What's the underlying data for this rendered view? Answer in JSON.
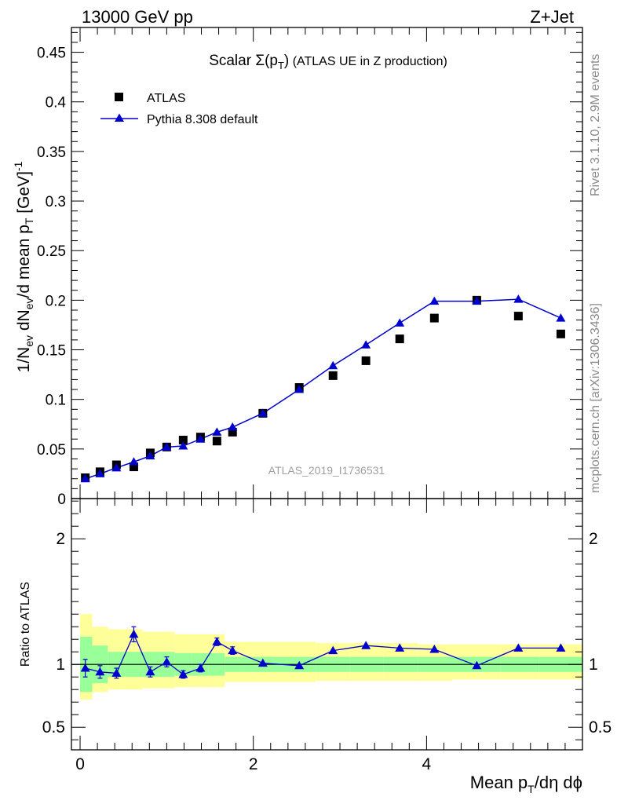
{
  "header": {
    "left": "13000 GeV pp",
    "right": "Z+Jet"
  },
  "side_labels": {
    "rivet": "Rivet 3.1.10,  2.9M events",
    "mcplots": "mcplots.cern.ch [arXiv:1306.3436]"
  },
  "watermark": "ATLAS_2019_I1736531",
  "chart_data": [
    {
      "type": "scatter",
      "title": "Scalar Σ(pT) (ATLAS UE in Z production)",
      "title_parts": {
        "prefix": "Scalar ",
        "sigma": "Σ(p",
        "sub": "T",
        "close": ")",
        "suffix": "  (ATLAS UE in Z production)"
      },
      "ylabel": "1/Nev dNev/d mean pT [GeV]^-1",
      "ylabel_parts": {
        "a": "1/N",
        "ev1": "ev",
        "b": " dN",
        "ev2": "ev",
        "c": "/d mean p",
        "t": "T",
        "d": " [GeV]",
        "sup": "-1"
      },
      "xlim": [
        -0.1,
        5.8
      ],
      "ylim": [
        0,
        0.475
      ],
      "yticks": [
        0,
        0.05,
        0.1,
        0.15,
        0.2,
        0.25,
        0.3,
        0.35,
        0.4,
        0.45
      ],
      "ytick_labels": [
        "0",
        "0.05",
        "0.1",
        "0.15",
        "0.2",
        "0.25",
        "0.3",
        "0.35",
        "0.4",
        "0.45"
      ],
      "legend": [
        "ATLAS",
        "Pythia 8.308 default"
      ],
      "legend_position": "top-left",
      "x": [
        0.06,
        0.23,
        0.42,
        0.62,
        0.81,
        1.0,
        1.19,
        1.39,
        1.58,
        1.76,
        2.11,
        2.53,
        2.92,
        3.3,
        3.69,
        4.09,
        4.58,
        5.06,
        5.55
      ],
      "series": [
        {
          "name": "ATLAS",
          "color": "#000000",
          "marker": "square",
          "values": [
            0.021,
            0.027,
            0.034,
            0.032,
            0.046,
            0.052,
            0.059,
            0.062,
            0.058,
            0.067,
            0.086,
            0.112,
            0.124,
            0.139,
            0.161,
            0.182,
            0.2,
            0.184,
            0.166
          ]
        },
        {
          "name": "Pythia 8.308 default",
          "color": "#0000cc",
          "marker": "triangle",
          "values": [
            0.02,
            0.025,
            0.031,
            0.037,
            0.043,
            0.052,
            0.053,
            0.06,
            0.067,
            0.072,
            0.086,
            0.11,
            0.134,
            0.155,
            0.177,
            0.199,
            0.199,
            0.201,
            0.182
          ]
        }
      ]
    },
    {
      "type": "line",
      "ylabel": "Ratio to ATLAS",
      "xlabel": "Mean pT/dη dϕ",
      "xlabel_parts": {
        "a": "Mean p",
        "t": "T",
        "b": "/dη dϕ"
      },
      "xlim": [
        -0.1,
        5.8
      ],
      "ylim": [
        0.32,
        2.32
      ],
      "xticks": [
        0,
        2,
        4
      ],
      "xtick_labels": [
        "0",
        "2",
        "4"
      ],
      "yticks": [
        0.5,
        1,
        2
      ],
      "ytick_labels": [
        "0.5",
        "1",
        "2"
      ],
      "bins": [
        [
          0,
          0.14
        ],
        [
          0.14,
          0.32
        ],
        [
          0.32,
          0.52
        ],
        [
          0.52,
          0.72
        ],
        [
          0.72,
          0.91
        ],
        [
          0.91,
          1.09
        ],
        [
          1.09,
          1.29
        ],
        [
          1.29,
          1.48
        ],
        [
          1.48,
          1.67
        ],
        [
          1.67,
          1.88
        ],
        [
          1.88,
          2.32
        ],
        [
          2.32,
          2.72
        ],
        [
          2.72,
          3.11
        ],
        [
          3.11,
          3.5
        ],
        [
          3.5,
          3.9
        ],
        [
          3.9,
          4.3
        ],
        [
          4.3,
          4.85
        ],
        [
          4.85,
          5.3
        ],
        [
          5.3,
          5.8
        ]
      ],
      "band_inner": [
        [
          0.78,
          1.22
        ],
        [
          0.85,
          1.15
        ],
        [
          0.9,
          1.1
        ],
        [
          0.9,
          1.1
        ],
        [
          0.9,
          1.1
        ],
        [
          0.9,
          1.1
        ],
        [
          0.91,
          1.09
        ],
        [
          0.91,
          1.09
        ],
        [
          0.91,
          1.09
        ],
        [
          0.94,
          1.06
        ],
        [
          0.94,
          1.06
        ],
        [
          0.94,
          1.06
        ],
        [
          0.94,
          1.06
        ],
        [
          0.94,
          1.06
        ],
        [
          0.94,
          1.06
        ],
        [
          0.94,
          1.06
        ],
        [
          0.94,
          1.06
        ],
        [
          0.94,
          1.06
        ],
        [
          0.94,
          1.06
        ]
      ],
      "band_outer": [
        [
          0.72,
          1.4
        ],
        [
          0.78,
          1.3
        ],
        [
          0.8,
          1.28
        ],
        [
          0.8,
          1.28
        ],
        [
          0.81,
          1.26
        ],
        [
          0.81,
          1.26
        ],
        [
          0.82,
          1.24
        ],
        [
          0.82,
          1.24
        ],
        [
          0.82,
          1.24
        ],
        [
          0.86,
          1.18
        ],
        [
          0.86,
          1.18
        ],
        [
          0.86,
          1.18
        ],
        [
          0.87,
          1.17
        ],
        [
          0.87,
          1.17
        ],
        [
          0.87,
          1.17
        ],
        [
          0.87,
          1.16
        ],
        [
          0.88,
          1.16
        ],
        [
          0.88,
          1.16
        ],
        [
          0.88,
          1.16
        ]
      ],
      "series": [
        {
          "name": "Pythia 8.308 default",
          "color": "#0000cc",
          "values": [
            0.97,
            0.94,
            0.93,
            1.24,
            0.94,
            1.02,
            0.92,
            0.97,
            1.18,
            1.11,
            1.01,
            0.99,
            1.11,
            1.15,
            1.13,
            1.12,
            0.99,
            1.13,
            1.13
          ],
          "errors": [
            0.07,
            0.05,
            0.04,
            0.06,
            0.04,
            0.04,
            0.03,
            0.03,
            0.03,
            0.03,
            0,
            0,
            0,
            0,
            0,
            0,
            0,
            0,
            0
          ]
        }
      ]
    }
  ]
}
